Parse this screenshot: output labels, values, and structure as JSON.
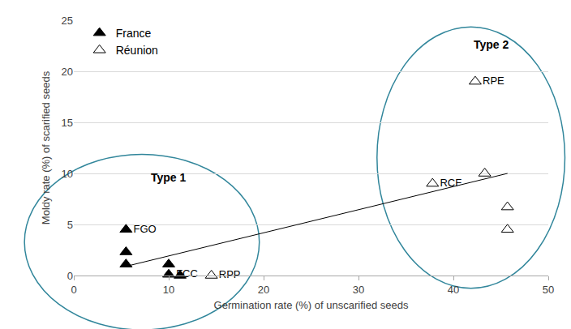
{
  "chart_data": {
    "type": "scatter",
    "x_label": "Germination rate (%) of unscarified seeds",
    "y_label": "Moldy rate (%) of scarified seeds",
    "xlim": [
      0,
      50
    ],
    "xticks": [
      0,
      10,
      20,
      30,
      40,
      50
    ],
    "ylim": [
      0,
      25
    ],
    "yticks": [
      0,
      5,
      10,
      15,
      20,
      25
    ],
    "grid": "y",
    "legend": "top left",
    "series": [
      {
        "name": "France",
        "color": "#000000",
        "marker": "triangle-up",
        "x": [
          5.5,
          5.5,
          5.5,
          10,
          10,
          11.2
        ],
        "values": [
          4.5,
          2.3,
          1.1,
          1.1,
          0.1,
          0
        ],
        "point_labels": [
          "FGO",
          null,
          null,
          null,
          "FCC",
          null
        ]
      },
      {
        "name": "Réunion",
        "color": "#000000",
        "marker": "triangle-up-open",
        "x": [
          14.5,
          37.8,
          43.3,
          42.3,
          45.7,
          45.7
        ],
        "values": [
          0,
          9,
          10,
          19,
          6.7,
          4.5
        ],
        "point_labels": [
          "RPP",
          "RCF",
          null,
          "RPE",
          null,
          null
        ]
      },
      {
        "type": "line",
        "color": "#000000",
        "line_style": "solid",
        "x": [
          5.5,
          45.7
        ],
        "values": [
          0.9,
          10
        ]
      }
    ],
    "annotations": [
      {
        "text": "Type 1",
        "x": 10,
        "y": 9.6
      },
      {
        "text": "Type 2",
        "x": 44,
        "y": 22.6
      }
    ]
  }
}
